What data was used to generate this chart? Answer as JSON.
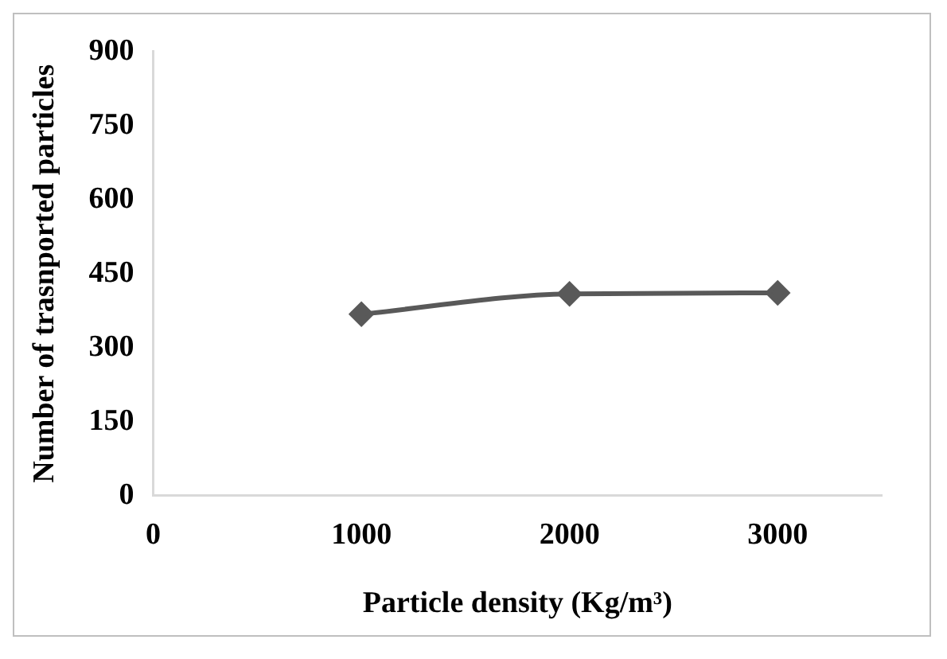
{
  "chart_data": {
    "type": "line",
    "xlabel": "Particle density (Kg/m³)",
    "ylabel": "Number of trasnported particles",
    "x": [
      1000,
      2000,
      3000
    ],
    "series": [
      {
        "color": "#595959",
        "values": [
          368,
          409,
          411
        ]
      }
    ],
    "xlim": [
      0,
      3500
    ],
    "xticks": [
      0,
      1000,
      2000,
      3000
    ],
    "ylim": [
      0,
      900
    ],
    "yticks": [
      0,
      150,
      300,
      450,
      600,
      750,
      900
    ],
    "grid": false,
    "legend": false,
    "marker": "diamond",
    "line_style": "solid"
  }
}
